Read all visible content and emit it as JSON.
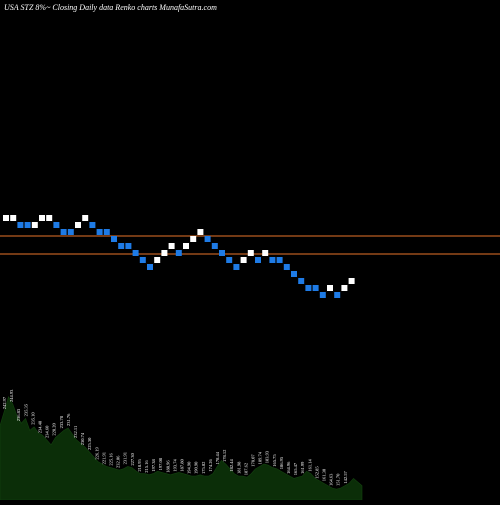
{
  "page": {
    "title": "USA STZ 8%~ Closing Daily data  Renko  charts MunafaSutra.com"
  },
  "colors": {
    "background": "#000000",
    "up_brick": "#ffffff",
    "down_brick": "#1e7be6",
    "reference_line": "#e8742a",
    "volume_fill": "#0b2e08",
    "volume_label": "#ffffff"
  },
  "chart_data": {
    "type": "renko",
    "title": "USA STZ 8%~ Closing Daily data  Renko  charts MunafaSutra.com",
    "reference_levels": [
      236,
      254
    ],
    "bricks": [
      {
        "dir": "up",
        "level": 218
      },
      {
        "dir": "up",
        "level": 218
      },
      {
        "dir": "down",
        "level": 225
      },
      {
        "dir": "down",
        "level": 225
      },
      {
        "dir": "up",
        "level": 225
      },
      {
        "dir": "up",
        "level": 218
      },
      {
        "dir": "up",
        "level": 218
      },
      {
        "dir": "down",
        "level": 225
      },
      {
        "dir": "down",
        "level": 232
      },
      {
        "dir": "down",
        "level": 232
      },
      {
        "dir": "up",
        "level": 225
      },
      {
        "dir": "up",
        "level": 218
      },
      {
        "dir": "down",
        "level": 225
      },
      {
        "dir": "down",
        "level": 232
      },
      {
        "dir": "down",
        "level": 232
      },
      {
        "dir": "down",
        "level": 239
      },
      {
        "dir": "down",
        "level": 246
      },
      {
        "dir": "down",
        "level": 246
      },
      {
        "dir": "down",
        "level": 253
      },
      {
        "dir": "down",
        "level": 260
      },
      {
        "dir": "down",
        "level": 267
      },
      {
        "dir": "up",
        "level": 260
      },
      {
        "dir": "up",
        "level": 253
      },
      {
        "dir": "up",
        "level": 246
      },
      {
        "dir": "down",
        "level": 253
      },
      {
        "dir": "up",
        "level": 246
      },
      {
        "dir": "up",
        "level": 239
      },
      {
        "dir": "up",
        "level": 232
      },
      {
        "dir": "down",
        "level": 239
      },
      {
        "dir": "down",
        "level": 246
      },
      {
        "dir": "down",
        "level": 253
      },
      {
        "dir": "down",
        "level": 260
      },
      {
        "dir": "down",
        "level": 267
      },
      {
        "dir": "up",
        "level": 260
      },
      {
        "dir": "up",
        "level": 253
      },
      {
        "dir": "down",
        "level": 260
      },
      {
        "dir": "up",
        "level": 253
      },
      {
        "dir": "down",
        "level": 260
      },
      {
        "dir": "down",
        "level": 260
      },
      {
        "dir": "down",
        "level": 267
      },
      {
        "dir": "down",
        "level": 274
      },
      {
        "dir": "down",
        "level": 281
      },
      {
        "dir": "down",
        "level": 288
      },
      {
        "dir": "down",
        "level": 288
      },
      {
        "dir": "down",
        "level": 295
      },
      {
        "dir": "up",
        "level": 288
      },
      {
        "dir": "down",
        "level": 295
      },
      {
        "dir": "up",
        "level": 288
      },
      {
        "dir": "up",
        "level": 281
      }
    ],
    "volume_labels": [
      "242.97",
      "244.93",
      "236.83",
      "235.35",
      "235.10",
      "234.48",
      "234.60",
      "228.20",
      "233.78",
      "231.76",
      "232.11",
      "230.74",
      "225.30",
      "226.19",
      "221.91",
      "225.16",
      "232.06",
      "231.91",
      "227.30",
      "218.95",
      "215.16",
      "197.38",
      "197.08",
      "188.96",
      "193.74",
      "187.80",
      "194.90",
      "190.90",
      "175.02",
      "174.26",
      "178.44",
      "178.12",
      "182.44",
      "181.98",
      "187.62",
      "178.07",
      "189.74",
      "183.93",
      "165.75",
      "186.95",
      "164.96",
      "165.47",
      "161.99",
      "161.14",
      "152.85",
      "161.30",
      "164.63",
      "151.70",
      "142.57"
    ],
    "volume_profile": [
      0.62,
      0.74,
      0.86,
      0.8,
      0.7,
      0.64,
      0.68,
      0.58,
      0.61,
      0.56,
      0.54,
      0.5,
      0.46,
      0.52,
      0.55,
      0.58,
      0.6,
      0.55,
      0.5,
      0.47,
      0.44,
      0.4,
      0.36,
      0.32,
      0.3,
      0.28,
      0.27,
      0.26,
      0.25,
      0.26,
      0.28,
      0.27,
      0.24,
      0.22,
      0.22,
      0.21,
      0.22,
      0.24,
      0.23,
      0.22,
      0.21,
      0.22,
      0.23,
      0.22,
      0.21,
      0.2,
      0.2,
      0.21,
      0.2,
      0.2,
      0.22,
      0.28,
      0.33,
      0.3,
      0.26,
      0.22,
      0.2,
      0.2,
      0.19,
      0.22,
      0.26,
      0.28,
      0.3,
      0.29,
      0.27,
      0.26,
      0.24,
      0.22,
      0.2,
      0.18,
      0.19,
      0.2,
      0.24,
      0.22,
      0.18,
      0.16,
      0.14,
      0.12,
      0.1,
      0.09,
      0.1,
      0.12,
      0.14,
      0.18,
      0.15,
      0.12
    ]
  }
}
